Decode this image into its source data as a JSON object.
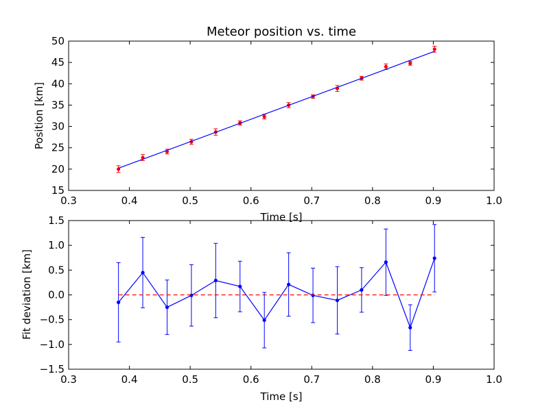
{
  "chart_data": [
    {
      "type": "scatter",
      "title": "Meteor position vs. time",
      "xlabel": "Time [s]",
      "ylabel": "Position [km]",
      "xlim": [
        0.3,
        1.0
      ],
      "ylim": [
        15,
        50
      ],
      "xticks": [
        "0.3",
        "0.4",
        "0.5",
        "0.6",
        "0.7",
        "0.8",
        "0.9",
        "1.0"
      ],
      "yticks": [
        "15",
        "20",
        "25",
        "30",
        "35",
        "40",
        "45",
        "50"
      ],
      "grid": false,
      "series": [
        {
          "kind": "errorbar-points",
          "color": "#ff0000",
          "x": [
            0.382,
            0.422,
            0.462,
            0.502,
            0.542,
            0.582,
            0.622,
            0.662,
            0.702,
            0.742,
            0.782,
            0.822,
            0.862,
            0.902
          ],
          "y": [
            20.0,
            22.7,
            24.1,
            26.4,
            28.7,
            30.8,
            32.3,
            35.0,
            37.0,
            38.9,
            41.3,
            44.0,
            44.8,
            48.1
          ],
          "err": [
            0.8,
            0.7,
            0.55,
            0.6,
            0.75,
            0.5,
            0.55,
            0.6,
            0.4,
            0.7,
            0.45,
            0.65,
            0.45,
            0.7
          ]
        },
        {
          "kind": "fit-line",
          "color": "#0000ff",
          "x": [
            0.382,
            0.902
          ],
          "y": [
            20.2,
            47.6
          ]
        }
      ]
    },
    {
      "type": "line",
      "title": "",
      "xlabel": "Time [s]",
      "ylabel": "Fit deviation [km]",
      "xlim": [
        0.3,
        1.0
      ],
      "ylim": [
        -1.5,
        1.5
      ],
      "xticks": [
        "0.3",
        "0.4",
        "0.5",
        "0.6",
        "0.7",
        "0.8",
        "0.9",
        "1.0"
      ],
      "yticks": [
        "−1.5",
        "−1.0",
        "−0.5",
        "0.0",
        "0.5",
        "1.0",
        "1.5"
      ],
      "grid": false,
      "series": [
        {
          "kind": "errorbar-line",
          "color": "#0000ff",
          "x": [
            0.382,
            0.422,
            0.462,
            0.502,
            0.542,
            0.582,
            0.622,
            0.662,
            0.702,
            0.742,
            0.782,
            0.822,
            0.862,
            0.902
          ],
          "y": [
            -0.15,
            0.45,
            -0.25,
            -0.01,
            0.29,
            0.17,
            -0.51,
            0.21,
            -0.01,
            -0.11,
            0.1,
            0.66,
            -0.66,
            0.74
          ],
          "err": [
            0.8,
            0.71,
            0.55,
            0.62,
            0.75,
            0.51,
            0.56,
            0.64,
            0.55,
            0.68,
            0.45,
            0.67,
            0.46,
            0.68
          ]
        },
        {
          "kind": "zero-line",
          "color": "#ff0000",
          "x": [
            0.382,
            0.902
          ],
          "y": [
            0.0,
            0.0
          ]
        }
      ]
    }
  ]
}
